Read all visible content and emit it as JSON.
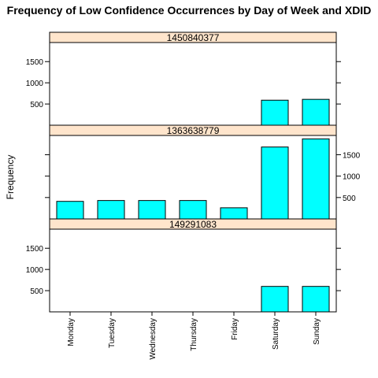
{
  "chart_data": {
    "type": "bar",
    "title": "Frequency of Low Confidence Occurrences by Day of Week and XDID",
    "ylabel": "Frequency",
    "categories": [
      "Monday",
      "Tuesday",
      "Wednesday",
      "Thursday",
      "Friday",
      "Saturday",
      "Sunday"
    ],
    "ylim": [
      0,
      1950
    ],
    "yticks": [
      500,
      1000,
      1500
    ],
    "yticks_display": [
      "500",
      "1000",
      "1500"
    ],
    "panels": [
      {
        "name": "1450840377",
        "values": [
          0,
          0,
          0,
          0,
          0,
          590,
          610
        ]
      },
      {
        "name": "1363638779",
        "values": [
          410,
          430,
          430,
          430,
          260,
          1680,
          1870
        ]
      },
      {
        "name": "149291083",
        "values": [
          0,
          0,
          0,
          0,
          0,
          600,
          600
        ]
      }
    ],
    "bar_color": "#00ffff",
    "strip_color": "#ffe5cc",
    "grid": false
  }
}
